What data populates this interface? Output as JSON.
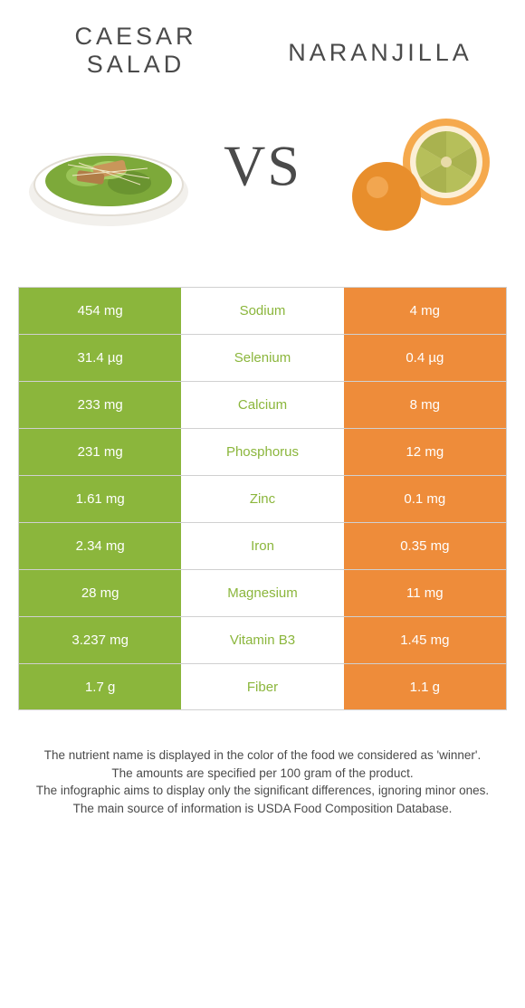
{
  "foods": {
    "left": {
      "name": "Caesar salad",
      "color": "#8bb63c"
    },
    "right": {
      "name": "Naranjilla",
      "color": "#ee8c3a"
    }
  },
  "vs_label": "VS",
  "nutrients": [
    {
      "name": "Sodium",
      "left": "454 mg",
      "right": "4 mg",
      "winner": "left"
    },
    {
      "name": "Selenium",
      "left": "31.4 µg",
      "right": "0.4 µg",
      "winner": "left"
    },
    {
      "name": "Calcium",
      "left": "233 mg",
      "right": "8 mg",
      "winner": "left"
    },
    {
      "name": "Phosphorus",
      "left": "231 mg",
      "right": "12 mg",
      "winner": "left"
    },
    {
      "name": "Zinc",
      "left": "1.61 mg",
      "right": "0.1 mg",
      "winner": "left"
    },
    {
      "name": "Iron",
      "left": "2.34 mg",
      "right": "0.35 mg",
      "winner": "left"
    },
    {
      "name": "Magnesium",
      "left": "28 mg",
      "right": "11 mg",
      "winner": "left"
    },
    {
      "name": "Vitamin B3",
      "left": "3.237 mg",
      "right": "1.45 mg",
      "winner": "left"
    },
    {
      "name": "Fiber",
      "left": "1.7 g",
      "right": "1.1 g",
      "winner": "left"
    }
  ],
  "footer": {
    "line1": "The nutrient name is displayed in the color of the food we considered as 'winner'.",
    "line2": "The amounts are specified per 100 gram of the product.",
    "line3": "The infographic aims to display only the significant differences, ignoring minor ones.",
    "line4": "The main source of information is USDA Food Composition Database."
  }
}
